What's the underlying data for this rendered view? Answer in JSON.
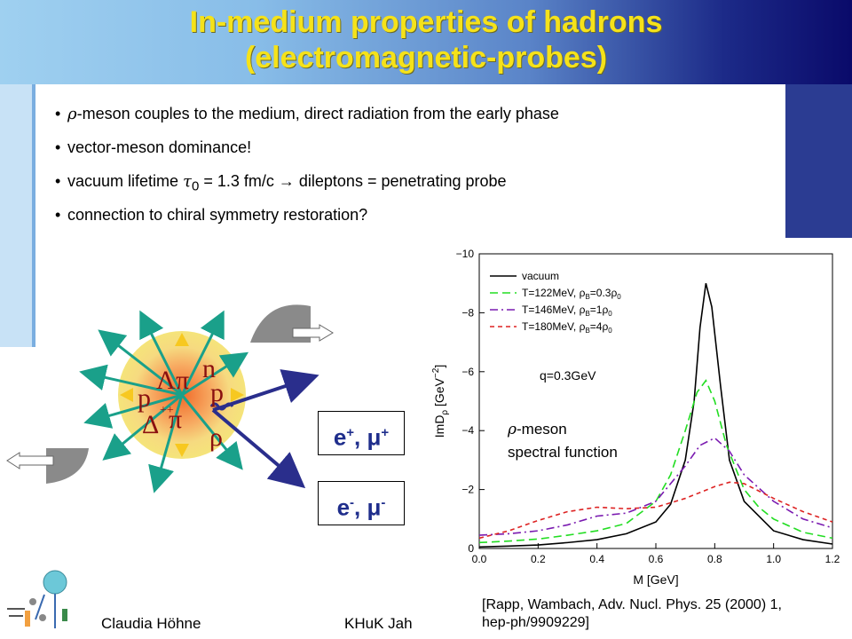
{
  "slide": {
    "title_line1": "In-medium properties of hadrons",
    "title_line2": "(electromagnetic-probes)"
  },
  "bullets": [
    {
      "symbol": "ρ",
      "text": "-meson couples to the medium, direct radiation from the early phase"
    },
    {
      "text": "vector-meson dominance!"
    },
    {
      "pre": "vacuum lifetime ",
      "symbol": "τ",
      "sub": "0",
      "post": " = 1.3 fm/c   →  dileptons   = penetrating probe"
    },
    {
      "text": "connection to chiral symmetry restoration?"
    }
  ],
  "diagram": {
    "particles": [
      "Λ",
      "π",
      "n",
      "p",
      "p",
      "Δ",
      "++",
      "π",
      "ρ"
    ],
    "positive_label": "e",
    "positive_sup": "+",
    "positive_label2": ", μ",
    "positive_sup2": "+",
    "negative_label": "e",
    "negative_sup": "-",
    "negative_label2": ", μ",
    "negative_sup2": "-",
    "colors": {
      "fireball_outer": "#f5e47a",
      "fireball_inner": "#f07838",
      "arrows": "#1aa08a",
      "lepton_lines": "#2a2e8c",
      "detector": "#8a8a8a"
    }
  },
  "annotation": {
    "line1_symbol": "ρ",
    "line1_text": "-meson",
    "line2": "spectral function"
  },
  "chart_data": {
    "type": "line",
    "xlabel": "M [GeV]",
    "ylabel": "ImD",
    "ylabel_sub": "ρ",
    "ylabel_unit": " [GeV",
    "ylabel_unit_sup": "−2",
    "ylabel_unit_end": "]",
    "xlim": [
      0.0,
      1.2
    ],
    "ylim": [
      0,
      -10
    ],
    "x_ticks": [
      "0.0",
      "0.2",
      "0.4",
      "0.6",
      "0.8",
      "1.0",
      "1.2"
    ],
    "y_ticks": [
      "0",
      "−2",
      "−4",
      "−6",
      "−8",
      "−10"
    ],
    "x_tick_values": [
      0.0,
      0.2,
      0.4,
      0.6,
      0.8,
      1.0,
      1.2
    ],
    "y_tick_values": [
      0,
      -2,
      -4,
      -6,
      -8,
      -10
    ],
    "annotation": "q=0.3GeV",
    "legend": [
      {
        "label": "vacuum"
      },
      {
        "label": "T=122MeV, ρ",
        "sub1": "B",
        "mid": "=0.3ρ",
        "sub2": "0"
      },
      {
        "label": "T=146MeV, ρ",
        "sub1": "B",
        "mid": "=1ρ",
        "sub2": "0"
      },
      {
        "label": "T=180MeV, ρ",
        "sub1": "B",
        "mid": "=4ρ",
        "sub2": "0"
      }
    ],
    "series": [
      {
        "color": "#000000",
        "dash": "",
        "x": [
          0.0,
          0.1,
          0.2,
          0.3,
          0.4,
          0.5,
          0.6,
          0.65,
          0.7,
          0.73,
          0.75,
          0.77,
          0.79,
          0.82,
          0.85,
          0.9,
          1.0,
          1.1,
          1.2
        ],
        "y": [
          -0.05,
          -0.08,
          -0.12,
          -0.2,
          -0.3,
          -0.5,
          -0.9,
          -1.5,
          -3.0,
          -5.0,
          -7.5,
          -9.0,
          -8.2,
          -5.5,
          -3.0,
          -1.6,
          -0.6,
          -0.3,
          -0.15
        ]
      },
      {
        "color": "#22dd22",
        "dash": "9,5",
        "x": [
          0.0,
          0.1,
          0.2,
          0.3,
          0.4,
          0.5,
          0.6,
          0.65,
          0.7,
          0.74,
          0.77,
          0.8,
          0.84,
          0.9,
          0.95,
          1.0,
          1.1,
          1.2
        ],
        "y": [
          -0.2,
          -0.25,
          -0.32,
          -0.45,
          -0.6,
          -0.85,
          -1.6,
          -2.5,
          -4.0,
          -5.3,
          -5.7,
          -5.0,
          -3.5,
          -2.0,
          -1.4,
          -1.0,
          -0.55,
          -0.35
        ]
      },
      {
        "color": "#7a1ab0",
        "dash": "9,4,2,4",
        "x": [
          0.0,
          0.1,
          0.2,
          0.3,
          0.4,
          0.5,
          0.6,
          0.7,
          0.75,
          0.8,
          0.85,
          0.9,
          1.0,
          1.1,
          1.2
        ],
        "y": [
          -0.45,
          -0.5,
          -0.6,
          -0.8,
          -1.1,
          -1.2,
          -1.6,
          -2.8,
          -3.5,
          -3.75,
          -3.3,
          -2.5,
          -1.6,
          -1.0,
          -0.7
        ]
      },
      {
        "color": "#dd2222",
        "dash": "5,4",
        "x": [
          0.0,
          0.1,
          0.2,
          0.3,
          0.4,
          0.5,
          0.6,
          0.7,
          0.8,
          0.85,
          0.9,
          1.0,
          1.1,
          1.2
        ],
        "y": [
          -0.35,
          -0.6,
          -0.95,
          -1.25,
          -1.4,
          -1.35,
          -1.4,
          -1.7,
          -2.1,
          -2.25,
          -2.2,
          -1.7,
          -1.25,
          -0.9
        ]
      }
    ]
  },
  "reference": {
    "line1": "[Rapp, Wambach, Adv. Nucl. Phys. 25 (2000) 1,",
    "line2": "hep-ph/9909229]"
  },
  "footer": {
    "author": "Claudia Höhne",
    "conference": "KHuK Jah"
  }
}
